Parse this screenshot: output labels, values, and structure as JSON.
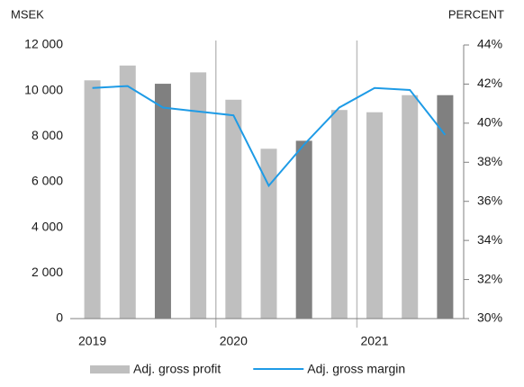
{
  "chart_data": {
    "type": "bar_line",
    "y_label": "MSEK",
    "y2_label": "PERCENT",
    "categories": [
      "2019",
      null,
      null,
      null,
      "2020",
      null,
      null,
      null,
      "2021",
      null,
      null
    ],
    "series": [
      {
        "name": "Adj. gross profit",
        "kind": "bar",
        "color": "#bfbfbf",
        "colors": [
          "#bfbfbf",
          "#bfbfbf",
          "#808080",
          "#bfbfbf",
          "#bfbfbf",
          "#bfbfbf",
          "#808080",
          "#bfbfbf",
          "#bfbfbf",
          "#bfbfbf",
          "#808080"
        ],
        "values": [
          10450,
          11100,
          10300,
          10800,
          9600,
          7450,
          7800,
          9150,
          9050,
          9800,
          9800
        ]
      },
      {
        "name": "Adj. gross margin",
        "kind": "line",
        "axis": "y2",
        "color": "#1e9be6",
        "values": [
          41.8,
          41.9,
          40.8,
          40.6,
          40.4,
          36.8,
          38.9,
          40.8,
          41.8,
          41.7,
          39.4
        ]
      }
    ],
    "ylim": [
      0,
      12000
    ],
    "yticks": [
      0,
      {
        "value": 2000,
        "label": "2 000"
      },
      {
        "value": 4000,
        "label": "4 000"
      },
      {
        "value": 6000,
        "label": "6 000"
      },
      {
        "value": 8000,
        "label": "8 000"
      },
      {
        "value": 10000,
        "label": "10 000"
      },
      {
        "value": 12000,
        "label": "12 000"
      }
    ],
    "y2lim": [
      30,
      44
    ],
    "y2ticks": [
      {
        "value": 30,
        "label": "30%"
      },
      {
        "value": 32,
        "label": "32%"
      },
      {
        "value": 34,
        "label": "34%"
      },
      {
        "value": 36,
        "label": "36%"
      },
      {
        "value": 38,
        "label": "38%"
      },
      {
        "value": 40,
        "label": "40%"
      },
      {
        "value": 42,
        "label": "42%"
      },
      {
        "value": 44,
        "label": "44%"
      }
    ],
    "legend": "bottom"
  }
}
